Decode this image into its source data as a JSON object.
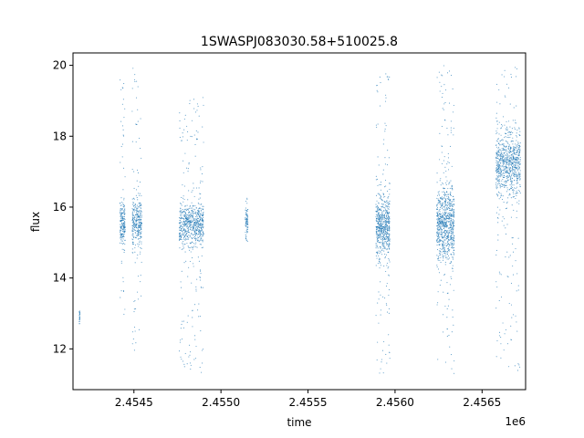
{
  "chart_data": {
    "type": "scatter",
    "title": "1SWASPJ083030.58+510025.8",
    "xlabel": "time",
    "ylabel": "flux",
    "x_offset_label": "1e6",
    "xlim": [
      2454150,
      2456750
    ],
    "ylim": [
      10.85,
      20.35
    ],
    "x_ticks": [
      2454500,
      2455000,
      2455500,
      2456000,
      2456500
    ],
    "x_tick_labels": [
      "2.4545",
      "2.4550",
      "2.4555",
      "2.4560",
      "2.4565"
    ],
    "y_ticks": [
      12,
      14,
      16,
      18,
      20
    ],
    "y_tick_labels": [
      "12",
      "14",
      "16",
      "18",
      "20"
    ],
    "grid": false,
    "marker_color": "#1f77b4",
    "clusters": [
      {
        "x_range": [
          2454185,
          2454190
        ],
        "center": 12.9,
        "spread": 0.12,
        "min": 12.5,
        "max": 13.2,
        "n": 25
      },
      {
        "x_range": [
          2454420,
          2454450
        ],
        "center": 15.5,
        "spread": 0.3,
        "min": 12.9,
        "max": 19.6,
        "n": 220
      },
      {
        "x_range": [
          2454490,
          2454545
        ],
        "center": 15.6,
        "spread": 0.35,
        "min": 11.9,
        "max": 20.0,
        "n": 340
      },
      {
        "x_range": [
          2454760,
          2454900
        ],
        "center": 15.5,
        "spread": 0.32,
        "min": 11.3,
        "max": 19.4,
        "n": 750
      },
      {
        "x_range": [
          2455140,
          2455155
        ],
        "center": 15.6,
        "spread": 0.2,
        "min": 15.0,
        "max": 16.3,
        "n": 80
      },
      {
        "x_range": [
          2455890,
          2455970
        ],
        "center": 15.5,
        "spread": 0.45,
        "min": 11.3,
        "max": 19.8,
        "n": 650
      },
      {
        "x_range": [
          2456240,
          2456340
        ],
        "center": 15.5,
        "spread": 0.5,
        "min": 11.3,
        "max": 20.0,
        "n": 850
      },
      {
        "x_range": [
          2456580,
          2456720
        ],
        "center": 17.2,
        "spread": 0.45,
        "min": 11.3,
        "max": 20.0,
        "n": 850
      }
    ]
  }
}
